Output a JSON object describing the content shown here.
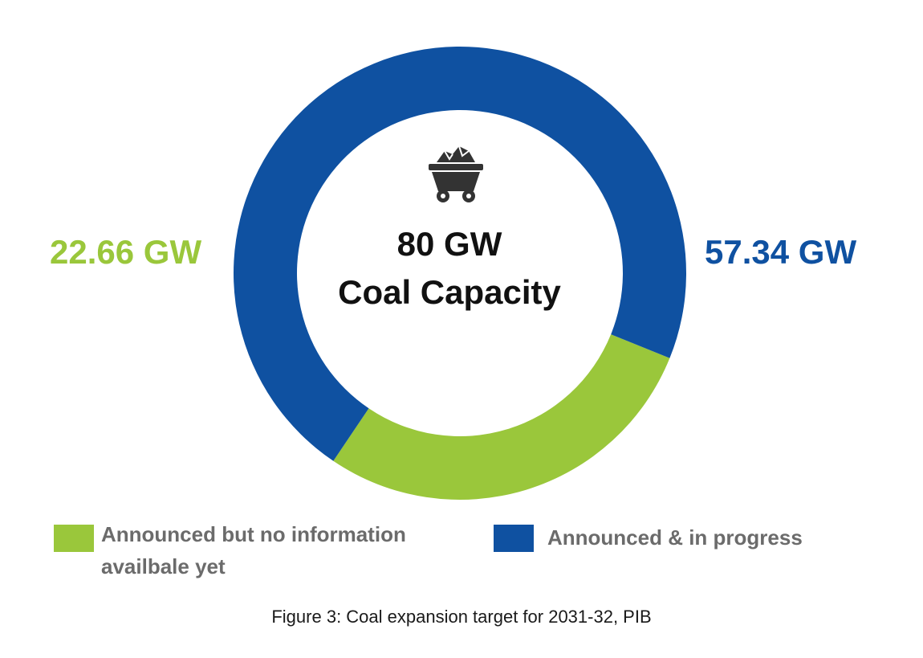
{
  "chart_data": {
    "type": "pie",
    "variant": "donut",
    "categories": [
      "Announced but no information availbale yet",
      "Announced & in progress"
    ],
    "values": [
      22.66,
      57.34
    ],
    "value_labels": [
      "22.66 GW",
      "57.34 GW"
    ],
    "colors": [
      "#9ac73b",
      "#0f51a1"
    ],
    "center": {
      "value": "80 GW",
      "label": "Coal Capacity",
      "icon": "coal-cart-icon"
    },
    "legend_position": "bottom"
  },
  "caption": "Figure 3: Coal expansion target for 2031-32, PIB"
}
